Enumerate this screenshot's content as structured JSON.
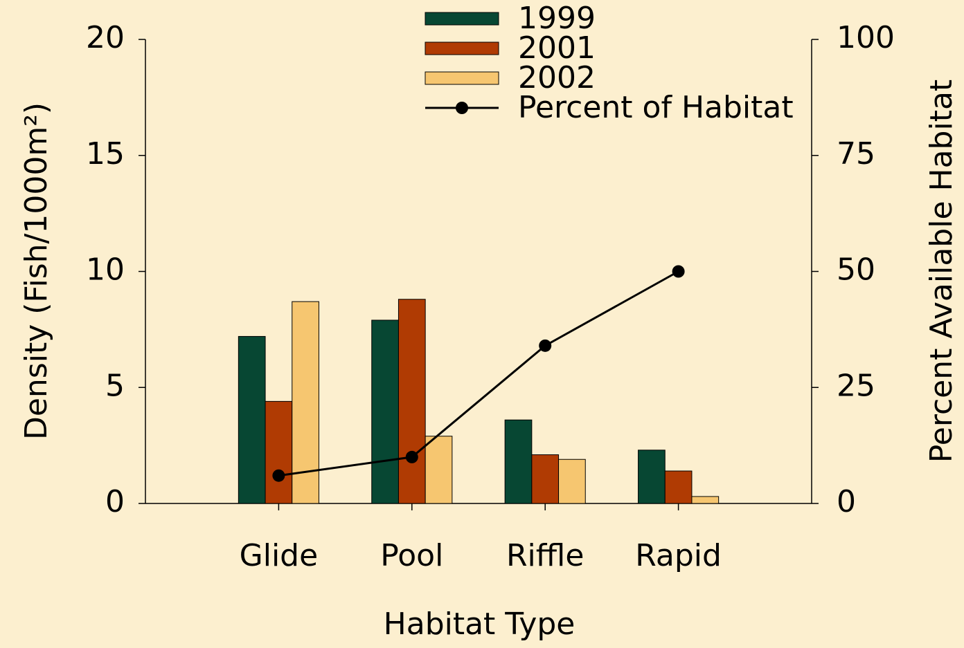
{
  "chart_data": {
    "type": "bar",
    "categories": [
      "Glide",
      "Pool",
      "Riffle",
      "Rapid"
    ],
    "series": [
      {
        "name": "1999",
        "color": "#074733",
        "values": [
          7.2,
          7.9,
          3.6,
          2.3
        ]
      },
      {
        "name": "2001",
        "color": "#b03b03",
        "values": [
          4.4,
          8.8,
          2.1,
          1.4
        ]
      },
      {
        "name": "2002",
        "color": "#f6c670",
        "values": [
          8.7,
          2.9,
          1.9,
          0.3
        ]
      },
      {
        "name": "Percent of Habitat",
        "type": "line",
        "axis": "y2",
        "color": "#000000",
        "values": [
          6,
          10,
          34,
          50
        ]
      }
    ],
    "xlabel": "Habitat Type",
    "ylabel": "Density (Fish/1000m²)",
    "y2label": "Percent Available Habitat",
    "ylim": [
      0,
      20
    ],
    "yticks": [
      0,
      5,
      10,
      15,
      20
    ],
    "y2lim": [
      0,
      100
    ],
    "y2ticks": [
      0,
      25,
      50,
      75,
      100
    ],
    "legend": "upper center"
  }
}
